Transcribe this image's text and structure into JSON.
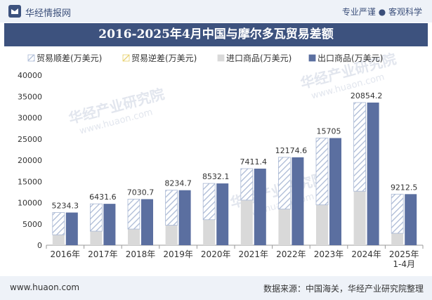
{
  "header": {
    "site_name": "华经情报网",
    "slogan": "专业严谨 ● 客观科学"
  },
  "footer": {
    "url": "www.huaon.com",
    "source": "数据来源：中国海关，华经产业研究院整理"
  },
  "watermarks": [
    "华经产业研究院",
    "www.huaon.com"
  ],
  "colors": {
    "export": "#5b6fa0",
    "import": "#d9d9d9",
    "surplus": "#a9b8d4",
    "deficit": "#e6cf6a",
    "header_band": "#3d527e"
  },
  "chart_data": {
    "type": "bar",
    "title": "2016-2025年4月中国与摩尔多瓦贸易差额",
    "categories": [
      "2016年",
      "2017年",
      "2018年",
      "2019年",
      "2020年",
      "2021年",
      "2022年",
      "2023年",
      "2024年",
      "2025年\n1-4月"
    ],
    "series": [
      {
        "name": "贸易顺差(万美元)",
        "values": [
          5234.3,
          6431.6,
          7030.7,
          8234.7,
          8532.1,
          7411.4,
          12174.6,
          15705,
          20854.2,
          9212.5
        ]
      },
      {
        "name": "贸易逆差(万美元)",
        "values": [
          0,
          0,
          0,
          0,
          0,
          0,
          0,
          0,
          0,
          0
        ]
      },
      {
        "name": "进口商品(万美元)",
        "values": [
          2450,
          3300,
          3800,
          4700,
          6000,
          10600,
          8500,
          9500,
          12700,
          2800
        ]
      },
      {
        "name": "出口商品(万美元)",
        "values": [
          7684.3,
          9731.6,
          10830.7,
          12934.7,
          14532.1,
          18011.4,
          20674.6,
          25205,
          33554.2,
          12012.5
        ]
      }
    ],
    "data_labels": [
      "5234.3",
      "6431.6",
      "7030.7",
      "8234.7",
      "8532.1",
      "7411.4",
      "12174.6",
      "15705",
      "20854.2",
      "9212.5"
    ],
    "ylim": [
      0,
      40000
    ],
    "yticks": [
      0,
      5000,
      10000,
      15000,
      20000,
      25000,
      30000,
      35000,
      40000
    ],
    "legend_position": "top",
    "grid": false
  }
}
